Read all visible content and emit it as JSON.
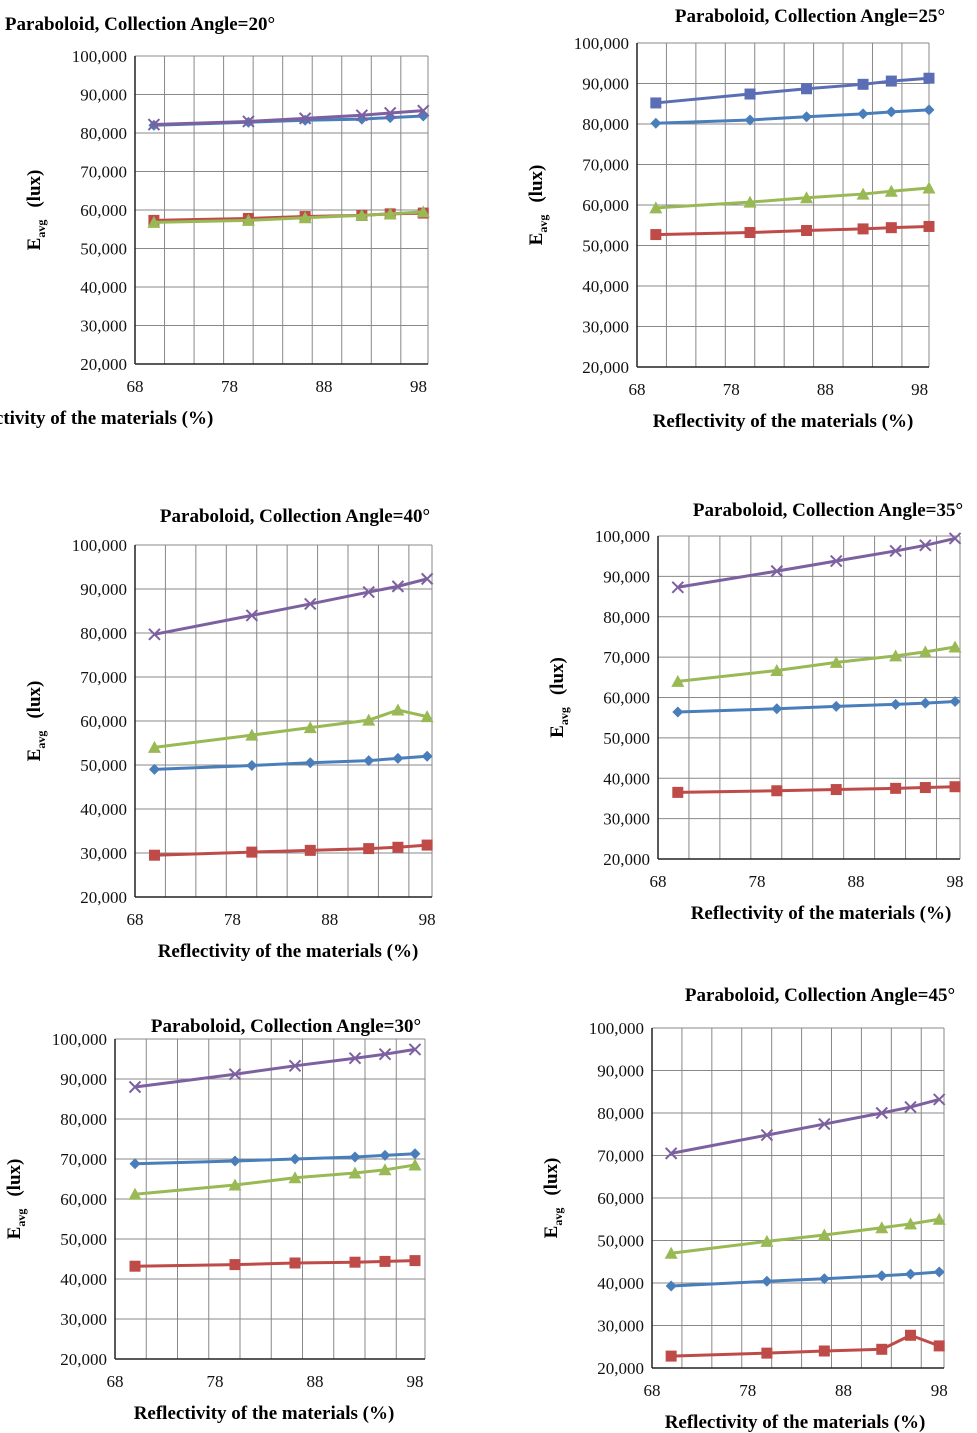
{
  "charts": [
    {
      "title": "Paraboloid, Collection Angle=20°",
      "xlabel": "Reflectivity of the materials (%)",
      "ylabel_main": "E",
      "ylabel_sub": "avg",
      "ylabel_unit": "(lux)",
      "x_ticks": [
        "68",
        "78",
        "88",
        "98"
      ],
      "y_ticks": [
        "20,000",
        "30,000",
        "40,000",
        "50,000",
        "60,000",
        "70,000",
        "80,000",
        "90,000",
        "100,000"
      ]
    },
    {
      "title": "Paraboloid, Collection Angle=25°",
      "xlabel": "Reflectivity of the materials (%)",
      "ylabel_main": "E",
      "ylabel_sub": "avg",
      "ylabel_unit": "(lux)",
      "x_ticks": [
        "68",
        "78",
        "88",
        "98"
      ],
      "y_ticks": [
        "20,000",
        "30,000",
        "40,000",
        "50,000",
        "60,000",
        "70,000",
        "80,000",
        "90,000",
        "100,000"
      ]
    },
    {
      "title": "Paraboloid, Collection Angle=40°",
      "xlabel": "Reflectivity of the materials (%)",
      "ylabel_main": "E",
      "ylabel_sub": "avg",
      "ylabel_unit": "(lux)",
      "x_ticks": [
        "68",
        "78",
        "88",
        "98"
      ],
      "y_ticks": [
        "20,000",
        "30,000",
        "40,000",
        "50,000",
        "60,000",
        "70,000",
        "80,000",
        "90,000",
        "100,000"
      ]
    },
    {
      "title": "Paraboloid, Collection Angle=35°",
      "xlabel": "Reflectivity of the materials (%)",
      "ylabel_main": "E",
      "ylabel_sub": "avg",
      "ylabel_unit": "(lux)",
      "x_ticks": [
        "68",
        "78",
        "88",
        "98"
      ],
      "y_ticks": [
        "20,000",
        "30,000",
        "40,000",
        "50,000",
        "60,000",
        "70,000",
        "80,000",
        "90,000",
        "100,000"
      ]
    },
    {
      "title": "Paraboloid, Collection Angle=30°",
      "xlabel": "Reflectivity of the materials (%)",
      "ylabel_main": "E",
      "ylabel_sub": "avg",
      "ylabel_unit": "(lux)",
      "x_ticks": [
        "68",
        "78",
        "88",
        "98"
      ],
      "y_ticks": [
        "20,000",
        "30,000",
        "40,000",
        "50,000",
        "60,000",
        "70,000",
        "80,000",
        "90,000",
        "100,000"
      ]
    },
    {
      "title": "Paraboloid, Collection Angle=45°",
      "xlabel": "Reflectivity of the materials (%)",
      "ylabel_main": "E",
      "ylabel_sub": "avg",
      "ylabel_unit": "(lux)",
      "x_ticks": [
        "68",
        "78",
        "88",
        "98"
      ],
      "y_ticks": [
        "20,000",
        "30,000",
        "40,000",
        "50,000",
        "60,000",
        "70,000",
        "80,000",
        "90,000",
        "100,000"
      ]
    }
  ],
  "chart_data": [
    {
      "type": "line",
      "title": "Paraboloid, Collection Angle=20°",
      "xlabel": "Reflectivity of the materials (%)",
      "ylabel": "Eavg (lux)",
      "xlim": [
        68,
        99
      ],
      "ylim": [
        20000,
        100000
      ],
      "grid": true,
      "x": [
        70,
        80,
        86,
        92,
        95,
        98.5
      ],
      "series": [
        {
          "color": "#4a7ebb",
          "marker": "diamond",
          "values": [
            82000,
            82800,
            83300,
            83600,
            84000,
            84400
          ]
        },
        {
          "color": "#be4b48",
          "marker": "square",
          "values": [
            57300,
            57800,
            58300,
            58600,
            59000,
            59200
          ]
        },
        {
          "color": "#98b954",
          "marker": "triangle",
          "values": [
            56800,
            57300,
            58000,
            58600,
            59000,
            59500
          ]
        },
        {
          "color": "#7d60a0",
          "marker": "x",
          "values": [
            82200,
            83000,
            83800,
            84600,
            85200,
            85800
          ]
        }
      ]
    },
    {
      "type": "line",
      "title": "Paraboloid, Collection Angle=25°",
      "xlabel": "Reflectivity of the materials (%)",
      "ylabel": "Eavg (lux)",
      "xlim": [
        68,
        99
      ],
      "ylim": [
        20000,
        100000
      ],
      "grid": true,
      "x": [
        70,
        80,
        86,
        92,
        95,
        99
      ],
      "series": [
        {
          "color": "#4a7ebb",
          "marker": "diamond",
          "values": [
            80200,
            81000,
            81800,
            82500,
            83000,
            83500
          ]
        },
        {
          "color": "#be4b48",
          "marker": "square",
          "values": [
            52700,
            53200,
            53700,
            54100,
            54400,
            54700
          ]
        },
        {
          "color": "#98b954",
          "marker": "triangle",
          "values": [
            59300,
            60700,
            61800,
            62700,
            63400,
            64200
          ]
        },
        {
          "color": "#5b6db5",
          "marker": "square",
          "values": [
            85200,
            87400,
            88700,
            89800,
            90600,
            91300
          ]
        }
      ]
    },
    {
      "type": "line",
      "title": "Paraboloid, Collection Angle=40°",
      "xlabel": "Reflectivity of the materials (%)",
      "ylabel": "Eavg (lux)",
      "xlim": [
        68,
        98.5
      ],
      "ylim": [
        20000,
        100000
      ],
      "grid": true,
      "x": [
        70,
        80,
        86,
        92,
        95,
        98
      ],
      "series": [
        {
          "color": "#4a7ebb",
          "marker": "diamond",
          "values": [
            49000,
            49900,
            50500,
            51000,
            51500,
            52000
          ]
        },
        {
          "color": "#be4b48",
          "marker": "square",
          "values": [
            29500,
            30200,
            30600,
            31000,
            31300,
            31800
          ]
        },
        {
          "color": "#98b954",
          "marker": "triangle",
          "values": [
            54000,
            56800,
            58500,
            60200,
            62500,
            61000
          ]
        },
        {
          "color": "#7d60a0",
          "marker": "x",
          "values": [
            79700,
            84000,
            86600,
            89300,
            90600,
            92300
          ]
        }
      ]
    },
    {
      "type": "line",
      "title": "Paraboloid, Collection Angle=35°",
      "xlabel": "Reflectivity of the materials (%)",
      "ylabel": "Eavg (lux)",
      "xlim": [
        68,
        98.5
      ],
      "ylim": [
        20000,
        100000
      ],
      "grid": true,
      "x": [
        70,
        80,
        86,
        92,
        95,
        98
      ],
      "series": [
        {
          "color": "#4a7ebb",
          "marker": "diamond",
          "values": [
            56400,
            57200,
            57800,
            58300,
            58600,
            59000
          ]
        },
        {
          "color": "#be4b48",
          "marker": "square",
          "values": [
            36500,
            36900,
            37200,
            37500,
            37700,
            37900
          ]
        },
        {
          "color": "#98b954",
          "marker": "triangle",
          "values": [
            64000,
            66700,
            68700,
            70300,
            71300,
            72500
          ]
        },
        {
          "color": "#7d60a0",
          "marker": "x",
          "values": [
            87300,
            91300,
            93800,
            96300,
            97700,
            99400
          ]
        }
      ]
    },
    {
      "type": "line",
      "title": "Paraboloid, Collection Angle=30°",
      "xlabel": "Reflectivity of the materials (%)",
      "ylabel": "Eavg (lux)",
      "xlim": [
        68,
        99
      ],
      "ylim": [
        20000,
        100000
      ],
      "grid": true,
      "x": [
        70,
        80,
        86,
        92,
        95,
        98
      ],
      "series": [
        {
          "color": "#4a7ebb",
          "marker": "diamond",
          "values": [
            68800,
            69500,
            70000,
            70500,
            70900,
            71300
          ]
        },
        {
          "color": "#be4b48",
          "marker": "square",
          "values": [
            43200,
            43600,
            44000,
            44200,
            44400,
            44600
          ]
        },
        {
          "color": "#98b954",
          "marker": "triangle",
          "values": [
            61200,
            63500,
            65300,
            66500,
            67300,
            68500
          ]
        },
        {
          "color": "#7d60a0",
          "marker": "x",
          "values": [
            88000,
            91200,
            93300,
            95200,
            96200,
            97400
          ]
        }
      ]
    },
    {
      "type": "line",
      "title": "Paraboloid, Collection Angle=45°",
      "xlabel": "Reflectivity of the materials (%)",
      "ylabel": "Eavg (lux)",
      "xlim": [
        68,
        98.5
      ],
      "ylim": [
        20000,
        100000
      ],
      "grid": true,
      "x": [
        70,
        80,
        86,
        92,
        95,
        98
      ],
      "series": [
        {
          "color": "#4a7ebb",
          "marker": "diamond",
          "values": [
            39300,
            40400,
            41000,
            41700,
            42100,
            42600
          ]
        },
        {
          "color": "#be4b48",
          "marker": "square",
          "values": [
            22800,
            23500,
            24000,
            24400,
            27700,
            25200
          ]
        },
        {
          "color": "#98b954",
          "marker": "triangle",
          "values": [
            47000,
            49800,
            51300,
            53000,
            53900,
            55000
          ]
        },
        {
          "color": "#7d60a0",
          "marker": "x",
          "values": [
            70500,
            74800,
            77400,
            80000,
            81400,
            83200
          ]
        }
      ]
    }
  ]
}
